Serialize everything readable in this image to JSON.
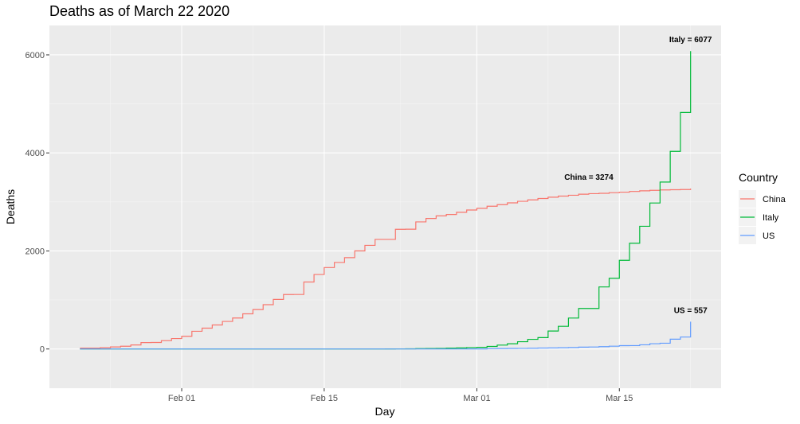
{
  "chart_data": {
    "type": "line",
    "title": "Deaths as of March 22 2020",
    "xlabel": "Day",
    "ylabel": "Deaths",
    "ylim": [
      -800,
      6600
    ],
    "y_ticks": [
      0,
      2000,
      4000,
      6000
    ],
    "y_tick_labels": [
      "0",
      "2000",
      "4000",
      "6000"
    ],
    "x_start": "2020-01-22",
    "x_end": "2020-03-22",
    "xlim": [
      "2020-01-19",
      "2020-03-25"
    ],
    "x_ticks": [
      "2020-02-01",
      "2020-02-15",
      "2020-03-01",
      "2020-03-15"
    ],
    "x_tick_labels": [
      "Feb 01",
      "Feb 15",
      "Mar 01",
      "Mar 15"
    ],
    "grid": true,
    "legend_title": "Country",
    "legend_position": "right",
    "series": [
      {
        "name": "China",
        "color": "#F8766D",
        "values": [
          17,
          18,
          26,
          42,
          56,
          82,
          131,
          133,
          171,
          213,
          259,
          361,
          425,
          490,
          562,
          632,
          717,
          804,
          904,
          1011,
          1111,
          1112,
          1367,
          1520,
          1662,
          1765,
          1863,
          2002,
          2114,
          2236,
          2236,
          2441,
          2443,
          2593,
          2663,
          2715,
          2744,
          2788,
          2835,
          2870,
          2912,
          2945,
          2981,
          3013,
          3042,
          3070,
          3097,
          3119,
          3136,
          3158,
          3169,
          3176,
          3189,
          3199,
          3213,
          3226,
          3237,
          3245,
          3249,
          3253,
          3274
        ]
      },
      {
        "name": "Italy",
        "color": "#00BA38",
        "values": [
          0,
          0,
          0,
          0,
          0,
          0,
          0,
          0,
          0,
          0,
          0,
          0,
          0,
          0,
          0,
          0,
          0,
          0,
          0,
          0,
          0,
          0,
          0,
          0,
          0,
          0,
          0,
          0,
          0,
          0,
          1,
          2,
          3,
          7,
          10,
          12,
          17,
          21,
          29,
          34,
          52,
          79,
          107,
          148,
          197,
          233,
          366,
          463,
          631,
          827,
          827,
          1266,
          1441,
          1809,
          2158,
          2503,
          2978,
          3405,
          4032,
          4825,
          6077
        ]
      },
      {
        "name": "US",
        "color": "#619CFF",
        "values": [
          0,
          0,
          0,
          0,
          0,
          0,
          0,
          0,
          0,
          0,
          0,
          0,
          0,
          0,
          0,
          0,
          0,
          0,
          0,
          0,
          0,
          0,
          0,
          0,
          0,
          0,
          0,
          0,
          0,
          0,
          0,
          0,
          0,
          0,
          0,
          0,
          0,
          0,
          1,
          1,
          6,
          9,
          11,
          12,
          15,
          19,
          22,
          26,
          30,
          38,
          41,
          48,
          57,
          68,
          69,
          85,
          108,
          118,
          200,
          244,
          557
        ]
      }
    ],
    "annotations": [
      {
        "text": "Italy = 6077",
        "x": "2020-03-22",
        "y": 6077,
        "series": "Italy"
      },
      {
        "text": "China = 3274",
        "x": "2020-03-12",
        "y": 3274,
        "series": "China"
      },
      {
        "text": "US = 557",
        "x": "2020-03-22",
        "y": 557,
        "series": "US"
      }
    ],
    "colors": {
      "panel_background": "#EBEBEB",
      "grid_major": "#FFFFFF",
      "grid_minor": "#F5F5F5"
    }
  }
}
